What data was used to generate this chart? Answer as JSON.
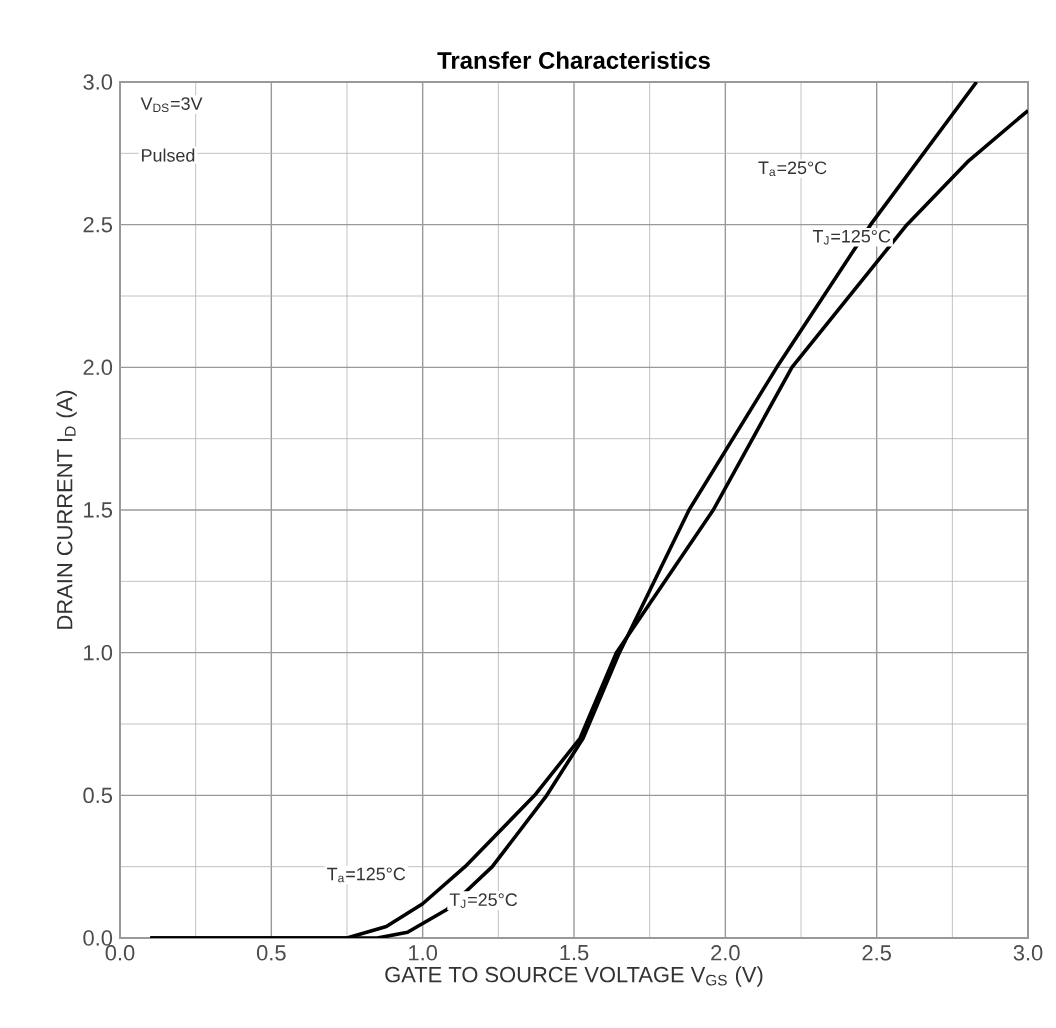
{
  "chart_data": {
    "type": "line",
    "title": "Transfer Characteristics",
    "xlabel": "GATE TO SOURCE VOLTAGE V$_{GS}$ (V)",
    "ylabel": "DRAIN CURRENT I$_{D}$ (A)",
    "xlim": [
      0,
      3
    ],
    "ylim": [
      0,
      3
    ],
    "xticks": [
      {
        "value": 0,
        "label": "0.0"
      },
      0.5,
      {
        "value": 1,
        "label": "1.0"
      },
      1.5,
      {
        "value": 2,
        "label": "2.0"
      },
      2.5,
      {
        "value": 3,
        "label": "3.0"
      }
    ],
    "yticks": [
      {
        "value": 0,
        "label": "0.0"
      },
      0.5,
      {
        "value": 1,
        "label": "1.0"
      },
      1.5,
      {
        "value": 2,
        "label": "2.0"
      },
      2.5,
      {
        "value": 3,
        "label": "3.0"
      }
    ],
    "grid": true,
    "marker": "none",
    "line_style": "solid",
    "series": [
      {
        "color": "#000000",
        "x": [
          0.1,
          0.85,
          0.95,
          1.08,
          1.23,
          1.41,
          1.53,
          1.65,
          1.88,
          2.17,
          2.48,
          2.83
        ],
        "values": [
          0,
          0,
          0.02,
          0.1,
          0.25,
          0.5,
          0.7,
          1.0,
          1.5,
          2.0,
          2.5,
          3.0
        ]
      },
      {
        "color": "#000000",
        "x": [
          0.1,
          0.75,
          0.88,
          1.0,
          1.14,
          1.37,
          1.52,
          1.64,
          1.96,
          2.22,
          2.6,
          2.8,
          3.0
        ],
        "values": [
          0,
          0,
          0.04,
          0.12,
          0.25,
          0.5,
          0.7,
          1.0,
          1.5,
          2.0,
          2.5,
          2.72,
          2.9
        ]
      }
    ],
    "annotations": [
      "V$_{DS}$=3V",
      "Pulsed",
      "T$_{a}$=25°C",
      "T$_{J}$=125°C",
      "T$_{a}$=125°C",
      "T$_{J}$=25°C"
    ]
  }
}
